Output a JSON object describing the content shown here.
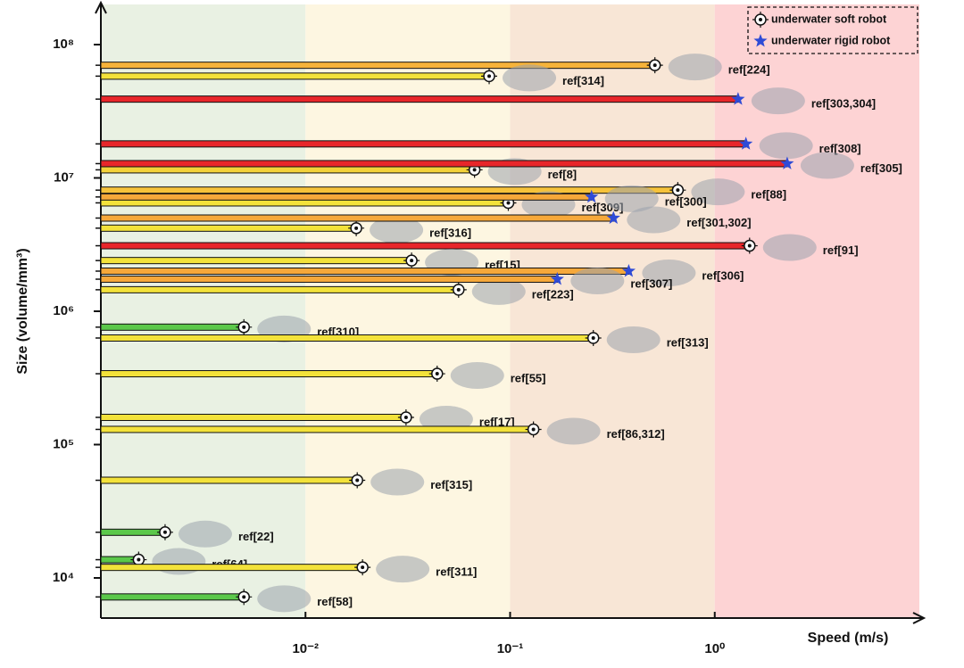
{
  "chart_data": {
    "type": "scatter",
    "x_label": "Speed (m/s)",
    "y_label": "Size (volume/mm³)",
    "x_log": true,
    "y_log": true,
    "xlim": [
      0.001,
      10
    ],
    "ylim": [
      5000,
      200000000
    ],
    "xticks": [
      {
        "value": 0.01,
        "label": "10⁻²"
      },
      {
        "value": 0.1,
        "label": "10⁻¹"
      },
      {
        "value": 1,
        "label": "10⁰"
      }
    ],
    "yticks": [
      {
        "value": 10000,
        "label": "10⁴"
      },
      {
        "value": 100000,
        "label": "10⁵"
      },
      {
        "value": 1000000,
        "label": "10⁶"
      },
      {
        "value": 10000000,
        "label": "10⁷"
      },
      {
        "value": 100000000,
        "label": "10⁸"
      }
    ],
    "background_bands": [
      "#e9f1e3",
      "#fdf6e1",
      "#f8e6d6",
      "#fdd3d4"
    ],
    "legend": "upper right",
    "series": [
      {
        "name": "underwater soft robot",
        "marker": "circle-dot",
        "color": "#111111",
        "x": [
          0.51,
          0.079,
          0.067,
          0.66,
          0.098,
          0.0177,
          1.48,
          0.033,
          0.056,
          0.005,
          0.255,
          0.044,
          0.031,
          0.13,
          0.0179,
          0.00206,
          0.00153,
          0.019,
          0.005
        ],
        "y": [
          70000000,
          58000000,
          11500000,
          8100000,
          6500000,
          4200000,
          3100000,
          2400000,
          1450000,
          760000,
          630000,
          340000,
          160000,
          130000,
          54000,
          22000,
          13700,
          12000,
          7200
        ],
        "labels": [
          "ref[224]",
          "ref[314]",
          "ref[8]",
          "ref[88]",
          "ref[309]",
          "ref[316]",
          "ref[91]",
          "ref[15]",
          "ref[223]",
          "ref[310]",
          "ref[313]",
          "ref[55]",
          "ref[17]",
          "ref[86,312]",
          "ref[315]",
          "ref[22]",
          "ref[64]",
          "ref[311]",
          "ref[58]"
        ],
        "bar_colors": [
          "#f6b33a",
          "#f3e23a",
          "#f3d23a",
          "#f6c23a",
          "#f3e23a",
          "#f3e23a",
          "#e8262a",
          "#f3e23a",
          "#f3e23a",
          "#5bc84a",
          "#f3e23a",
          "#f3e23a",
          "#f3e23a",
          "#f3e23a",
          "#f3e23a",
          "#5bc84a",
          "#5bc84a",
          "#f3e23a",
          "#5bc84a"
        ]
      },
      {
        "name": "underwater rigid robot",
        "marker": "star",
        "color": "#2f4bd6",
        "x": [
          1.3,
          1.42,
          2.26,
          0.25,
          0.32,
          0.38,
          0.17
        ],
        "y": [
          39000000,
          18000000,
          12800000,
          7200000,
          5000000,
          2000000,
          1740000
        ],
        "labels": [
          "ref[303,304]",
          "ref[308]",
          "ref[305]",
          "ref[300]",
          "ref[301,302]",
          "ref[306]",
          "ref[307]"
        ],
        "bar_colors": [
          "#e8262a",
          "#e8262a",
          "#e8262a",
          "#f6a83a",
          "#f6a83a",
          "#f6a83a",
          "#f6a83a"
        ]
      }
    ]
  }
}
